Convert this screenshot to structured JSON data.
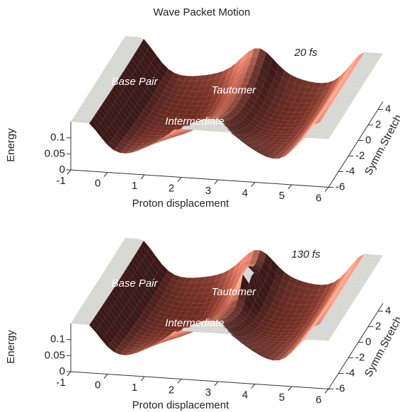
{
  "chart_data": [
    {
      "type": "surface",
      "title": "Wave Packet Motion",
      "time_label": "20 fs",
      "annotations": [
        "Base Pair",
        "Tautomer",
        "Intermediate"
      ],
      "xlabel": "Proton displacement",
      "ylabel": "Symm.Stretch",
      "zlabel": "Energy",
      "xlim": [
        -1,
        6
      ],
      "ylim": [
        -6,
        5
      ],
      "zlim": [
        0,
        0.15
      ],
      "xticks": [
        -1,
        0,
        1,
        2,
        3,
        4,
        5,
        6
      ],
      "yticks": [
        -6,
        -4,
        -2,
        0,
        2,
        4
      ],
      "zticks": [
        0,
        0.05,
        0.1
      ]
    },
    {
      "type": "surface",
      "time_label": "130 fs",
      "annotations": [
        "Base Pair",
        "Tautomer",
        "Intermediate"
      ],
      "xlabel": "Proton displacement",
      "ylabel": "Symm.Stretch",
      "zlabel": "Energy",
      "xlim": [
        -1,
        6
      ],
      "ylim": [
        -6,
        5
      ],
      "zlim": [
        0,
        0.15
      ],
      "xticks": [
        -1,
        0,
        1,
        2,
        3,
        4,
        5,
        6
      ],
      "yticks": [
        -6,
        -4,
        -2,
        0,
        2,
        4
      ],
      "zticks": [
        0,
        0.05,
        0.1
      ]
    }
  ]
}
